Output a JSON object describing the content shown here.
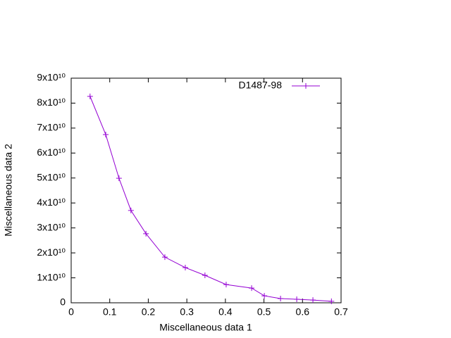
{
  "chart_data": {
    "type": "line",
    "x_label": "Miscellaneous data 1",
    "y_label": "Miscellaneous data 2",
    "x": [
      0.049,
      0.0896,
      0.124,
      0.155,
      0.194,
      0.243,
      0.296,
      0.347,
      0.402,
      0.468,
      0.501,
      0.543,
      0.585,
      0.627,
      0.675
    ],
    "series": [
      {
        "name": "D1487-98",
        "color": "#9400d3",
        "values": [
          82700000000,
          67400000000,
          49900000000,
          37000000000,
          27700000000,
          18300000000,
          14100000000,
          11000000000,
          7300000000,
          5900000000,
          2800000000,
          1700000000,
          1400000000,
          1100000000,
          600000000
        ]
      }
    ],
    "xlim": [
      0,
      0.7
    ],
    "xticks": [
      0,
      0.1,
      0.2,
      0.3,
      0.4,
      0.5,
      0.6,
      0.7
    ],
    "ylim": [
      0,
      90000000000
    ],
    "yticks": [
      0,
      {
        "value": 10000000000,
        "label": "1x10¹⁰"
      },
      {
        "value": 20000000000,
        "label": "2x10¹⁰"
      },
      {
        "value": 30000000000,
        "label": "3x10¹⁰"
      },
      {
        "value": 40000000000,
        "label": "4x10¹⁰"
      },
      {
        "value": 50000000000,
        "label": "5x10¹⁰"
      },
      {
        "value": 60000000000,
        "label": "6x10¹⁰"
      },
      {
        "value": 70000000000,
        "label": "7x10¹⁰"
      },
      {
        "value": 80000000000,
        "label": "8x10¹⁰"
      },
      {
        "value": 90000000000,
        "label": "9x10¹⁰"
      }
    ],
    "grid": false,
    "legend": "top-right"
  }
}
